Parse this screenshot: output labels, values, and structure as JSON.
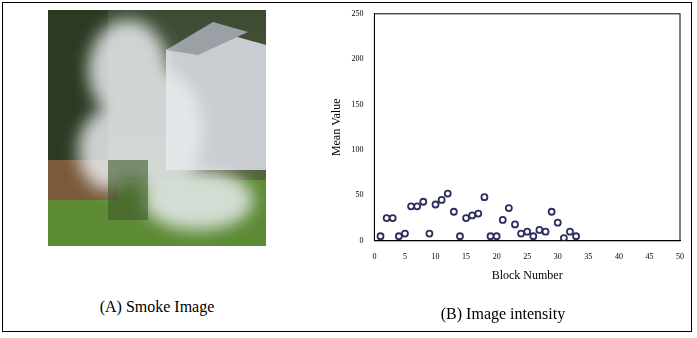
{
  "image_panel": {
    "caption": "(A) Smoke Image"
  },
  "chart_data": {
    "type": "scatter",
    "title": "(B) Image intensity",
    "x_label": "Block Number",
    "y_label": "Mean Value",
    "x": [
      1,
      2,
      3,
      4,
      5,
      6,
      7,
      8,
      9,
      10,
      11,
      12,
      13,
      14,
      15,
      16,
      17,
      18,
      19,
      20,
      21,
      22,
      23,
      24,
      25,
      26,
      27,
      28,
      29,
      30,
      31,
      32,
      33
    ],
    "values": [
      5,
      25,
      25,
      5,
      8,
      38,
      38,
      43,
      8,
      40,
      45,
      52,
      32,
      5,
      25,
      28,
      30,
      48,
      5,
      5,
      23,
      36,
      18,
      8,
      10,
      5,
      12,
      10,
      32,
      20,
      3,
      10,
      5
    ],
    "color": "#2e2e5e",
    "marker": "circle",
    "xlim": [
      0,
      50
    ],
    "xticks": [
      0,
      5,
      10,
      15,
      20,
      25,
      30,
      35,
      40,
      45,
      50
    ],
    "ylim": [
      0,
      250
    ],
    "yticks": [
      0,
      50,
      100,
      150,
      200,
      250
    ],
    "grid": false
  }
}
